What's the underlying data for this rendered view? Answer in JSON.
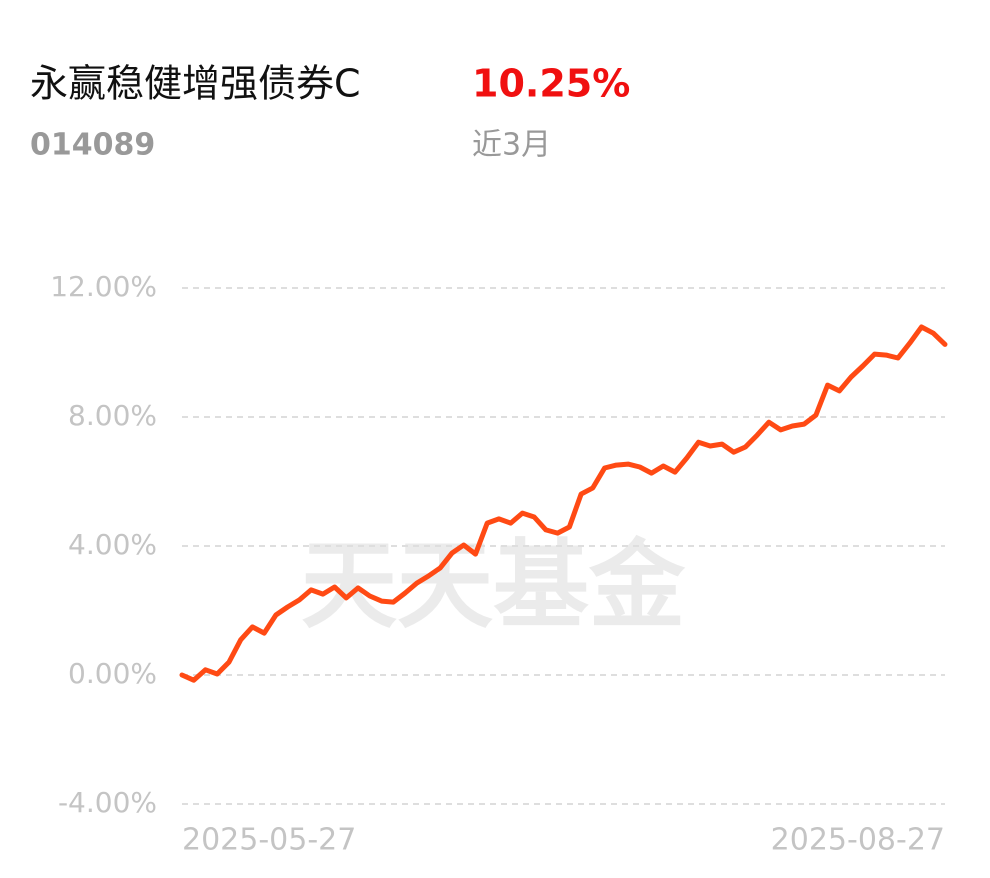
{
  "chart_data": {
    "type": "line",
    "title": "永赢稳健增强债券C",
    "code": "014089",
    "return": "10.25%",
    "period": "近3月",
    "watermark": "天天基金",
    "categories": [
      "2025-05-27",
      null,
      null,
      null,
      null,
      null,
      null,
      null,
      null,
      null,
      null,
      null,
      null,
      null,
      null,
      null,
      null,
      null,
      null,
      null,
      null,
      null,
      null,
      null,
      null,
      null,
      null,
      null,
      null,
      null,
      null,
      null,
      null,
      null,
      null,
      null,
      null,
      null,
      null,
      null,
      null,
      null,
      null,
      null,
      null,
      null,
      null,
      null,
      null,
      null,
      null,
      null,
      null,
      null,
      null,
      null,
      null,
      null,
      null,
      null,
      null,
      null,
      null,
      null,
      null,
      "2025-08-27"
    ],
    "values": [
      0,
      -0.16,
      0.16,
      0.03,
      0.4,
      1.09,
      1.49,
      1.3,
      1.86,
      2.11,
      2.33,
      2.64,
      2.51,
      2.73,
      2.39,
      2.7,
      2.45,
      2.29,
      2.26,
      2.54,
      2.85,
      3.07,
      3.32,
      3.78,
      4.03,
      3.75,
      4.71,
      4.84,
      4.71,
      5.02,
      4.9,
      4.5,
      4.4,
      4.59,
      5.61,
      5.8,
      6.42,
      6.51,
      6.54,
      6.45,
      6.26,
      6.48,
      6.29,
      6.73,
      7.22,
      7.1,
      7.16,
      6.91,
      7.07,
      7.44,
      7.84,
      7.6,
      7.72,
      7.78,
      8.06,
      8.99,
      8.81,
      9.24,
      9.58,
      9.95,
      9.92,
      9.83,
      10.29,
      10.79,
      10.6,
      10.25
    ],
    "color": "#ff4a14",
    "ylim": [
      -4,
      12
    ],
    "yticks": [
      {
        "value": -4,
        "label": "-4.00%"
      },
      {
        "value": 0,
        "label": "0.00%"
      },
      {
        "value": 4,
        "label": "4.00%"
      },
      {
        "value": 8,
        "label": "8.00%"
      },
      {
        "value": 12,
        "label": "12.00%"
      }
    ],
    "grid": true
  }
}
